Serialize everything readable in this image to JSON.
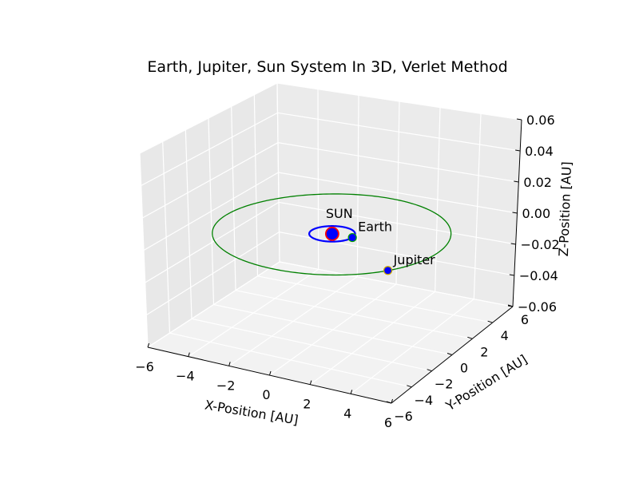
{
  "chart_data": {
    "type": "scatter3d",
    "title": "Earth, Jupiter, Sun System In 3D, Verlet Method",
    "xlabel": "X-Position [AU]",
    "ylabel": "Y-Position [AU]",
    "zlabel": "Z-Position [AU]",
    "xlim": [
      -6,
      6
    ],
    "ylim": [
      -6,
      6
    ],
    "zlim": [
      -0.06,
      0.06
    ],
    "xticks": [
      "−6",
      "−4",
      "−2",
      "0",
      "2",
      "4",
      "6"
    ],
    "yticks": [
      "−6",
      "−4",
      "−2",
      "0",
      "2",
      "4",
      "6"
    ],
    "zticks": [
      "−0.06",
      "−0.04",
      "−0.02",
      "0.00",
      "0.02",
      "0.04",
      "0.06"
    ],
    "grid": true,
    "orbits": [
      {
        "body": "Earth",
        "radius_au": 1.0,
        "color": "#0000ff"
      },
      {
        "body": "Jupiter",
        "radius_au": 5.2,
        "color": "#008000"
      }
    ],
    "bodies": [
      {
        "name": "SUN",
        "x": 0.0,
        "y": 0.0,
        "z": 0.0,
        "color": "#0000ff",
        "edge": "#ff0000"
      },
      {
        "name": "Earth",
        "x": 1.0,
        "y": 0.0,
        "z": 0.0,
        "color": "#0000ff",
        "edge": "#00a000"
      },
      {
        "name": "Jupiter",
        "x": 4.3,
        "y": -2.9,
        "z": 0.0,
        "color": "#0000ff",
        "edge": "#ccaa00"
      }
    ]
  }
}
